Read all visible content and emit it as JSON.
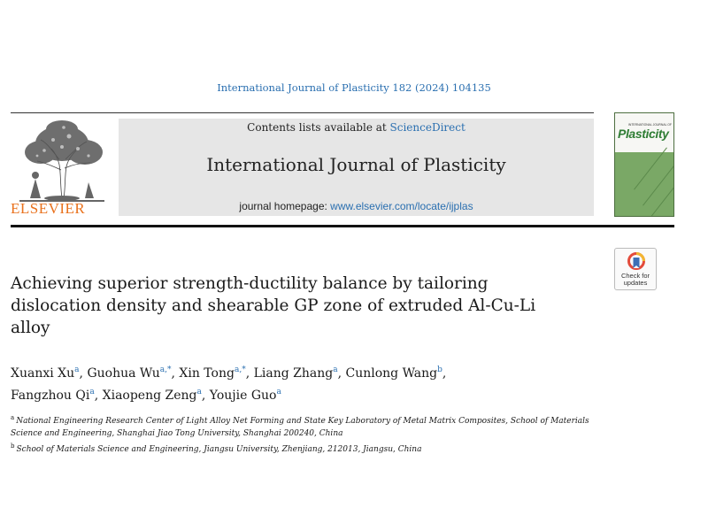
{
  "citation": "International Journal of Plasticity 182 (2024) 104135",
  "masthead": {
    "contents_prefix": "Contents lists available at ",
    "contents_link": "ScienceDirect",
    "journal_title": "International Journal of Plasticity",
    "homepage_prefix": "journal homepage: ",
    "homepage_link": "www.elsevier.com/locate/ijplas"
  },
  "publisher": {
    "name": "ELSEVIER"
  },
  "cover": {
    "kicker": "INTERNATIONAL JOURNAL OF",
    "word": "Plasticity",
    "color": "#7aa866"
  },
  "crossmark": {
    "line1": "Check for",
    "line2": "updates"
  },
  "paper": {
    "title": "Achieving superior strength-ductility balance by tailoring dislocation density and shearable GP zone of extruded Al-Cu-Li alloy"
  },
  "authors": [
    {
      "name": "Xuanxi Xu",
      "sup": "a"
    },
    {
      "name": "Guohua Wu",
      "sup": "a,*"
    },
    {
      "name": "Xin Tong",
      "sup": "a,*"
    },
    {
      "name": "Liang Zhang",
      "sup": "a"
    },
    {
      "name": "Cunlong Wang",
      "sup": "b"
    },
    {
      "name": "Fangzhou Qi",
      "sup": "a"
    },
    {
      "name": "Xiaopeng Zeng",
      "sup": "a"
    },
    {
      "name": "Youjie Guo",
      "sup": "a"
    }
  ],
  "affiliations": [
    {
      "key": "a",
      "text": "National Engineering Research Center of Light Alloy Net Forming and State Key Laboratory of Metal Matrix Composites, School of Materials Science and Engineering, Shanghai Jiao Tong University, Shanghai 200240, China"
    },
    {
      "key": "b",
      "text": "School of Materials Science and Engineering, Jiangsu University, Zhenjiang, 212013, Jiangsu, China"
    }
  ],
  "colors": {
    "link": "#2a6fb0",
    "publisher_orange": "#e9711c",
    "masthead_gray": "#e6e6e6"
  }
}
